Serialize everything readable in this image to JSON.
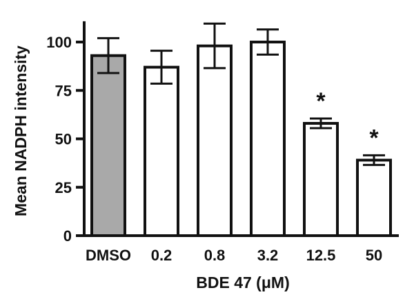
{
  "chart_data": {
    "type": "bar",
    "categories": [
      "DMSO",
      "0.2",
      "0.8",
      "3.2",
      "12.5",
      "50"
    ],
    "values": [
      93,
      87,
      98,
      100,
      58,
      39
    ],
    "errors": [
      9,
      8.5,
      11.5,
      6.5,
      2.5,
      2.5
    ],
    "significant": [
      "",
      "",
      "",
      "",
      "*",
      "*"
    ],
    "bar_colors": [
      "#a9a9a9",
      "#ffffff",
      "#ffffff",
      "#ffffff",
      "#ffffff",
      "#ffffff"
    ],
    "xlabel": "BDE 47 (μM)",
    "ylabel": "Mean NADPH intensity",
    "ylim": [
      0,
      110
    ],
    "yticks": [
      0,
      25,
      50,
      75,
      100
    ],
    "grid": false,
    "legend": "none"
  }
}
